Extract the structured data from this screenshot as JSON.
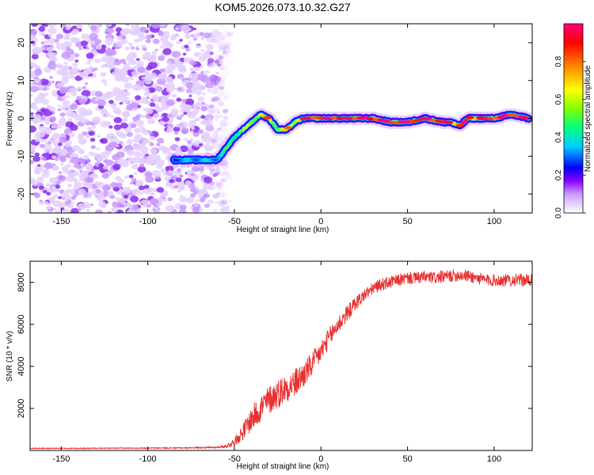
{
  "title": "KOM5.2026.073.10.32.G27",
  "chart_data": [
    {
      "type": "heatmap",
      "panel": "spectrogram",
      "xlabel": "Height of straight line (km)",
      "ylabel": "Frequency (Hz)",
      "xlim": [
        -168,
        122
      ],
      "ylim": [
        -25,
        25
      ],
      "xticks": [
        -150,
        -100,
        -50,
        0,
        50,
        100
      ],
      "yticks": [
        -20,
        -10,
        0,
        10,
        20
      ],
      "colorbar": {
        "label": "Normalized spectral amplitude",
        "range": [
          0,
          1
        ],
        "ticks": [
          0.0,
          0.2,
          0.4,
          0.6,
          0.8
        ],
        "colors": [
          "#ffffff",
          "#e8d8ff",
          "#cc99ff",
          "#8800ff",
          "#0000ff",
          "#00ccff",
          "#00ff80",
          "#80ff00",
          "#ffff00",
          "#ff8000",
          "#ff0000",
          "#ff0080"
        ]
      },
      "ridge": {
        "x": [
          -85,
          -70,
          -60,
          -55,
          -50,
          -45,
          -40,
          -35,
          -30,
          -25,
          -20,
          -15,
          -10,
          -5,
          0,
          10,
          20,
          30,
          40,
          50,
          60,
          70,
          75,
          80,
          85,
          90,
          100,
          110,
          120
        ],
        "y": [
          -11,
          -11,
          -11,
          -8,
          -5,
          -3,
          -1,
          1,
          0,
          -3,
          -3,
          -1,
          0,
          0,
          0,
          0,
          0,
          0,
          -1,
          -1,
          0,
          -1,
          -1,
          -2,
          0,
          0,
          0,
          1,
          0
        ],
        "amplitude": [
          0.3,
          0.35,
          0.35,
          0.45,
          0.5,
          0.55,
          0.6,
          0.65,
          0.7,
          0.6,
          0.65,
          0.7,
          0.8,
          0.85,
          0.85,
          0.9,
          0.9,
          0.9,
          0.85,
          0.9,
          0.9,
          0.85,
          0.85,
          0.8,
          0.85,
          0.85,
          0.85,
          0.85,
          0.85
        ]
      },
      "noise_region_x": [
        -168,
        -55
      ]
    },
    {
      "type": "line",
      "panel": "snr",
      "xlabel": "Height of straight line (km)",
      "ylabel": "SNR (10 * v/v)",
      "xlim": [
        -168,
        122
      ],
      "ylim": [
        0,
        9000
      ],
      "xticks": [
        -150,
        -100,
        -50,
        0,
        50,
        100
      ],
      "yticks": [
        2000,
        4000,
        6000,
        8000
      ],
      "color": "#e83030",
      "series": [
        {
          "name": "SNR",
          "x": [
            -168,
            -140,
            -110,
            -80,
            -60,
            -55,
            -50,
            -45,
            -40,
            -35,
            -30,
            -25,
            -20,
            -15,
            -10,
            -5,
            0,
            5,
            10,
            15,
            20,
            25,
            30,
            35,
            40,
            45,
            50,
            55,
            60,
            65,
            70,
            75,
            80,
            85,
            90,
            95,
            100,
            110,
            122
          ],
          "y": [
            100,
            100,
            110,
            120,
            150,
            200,
            400,
            900,
            1500,
            2000,
            2400,
            2700,
            3000,
            3200,
            3600,
            4100,
            4700,
            5400,
            6000,
            6500,
            7000,
            7400,
            7700,
            7900,
            8000,
            8100,
            8200,
            8200,
            8250,
            8200,
            8250,
            8300,
            8350,
            8300,
            8200,
            8100,
            8100,
            8100,
            8100
          ],
          "noise_amplitude": [
            20,
            20,
            20,
            25,
            40,
            80,
            200,
            400,
            600,
            700,
            700,
            700,
            700,
            700,
            650,
            600,
            550,
            500,
            450,
            400,
            350,
            300,
            300,
            300,
            300,
            300,
            300,
            300,
            300,
            300,
            300,
            300,
            300,
            300,
            300,
            300,
            300,
            300,
            300
          ]
        }
      ]
    }
  ]
}
